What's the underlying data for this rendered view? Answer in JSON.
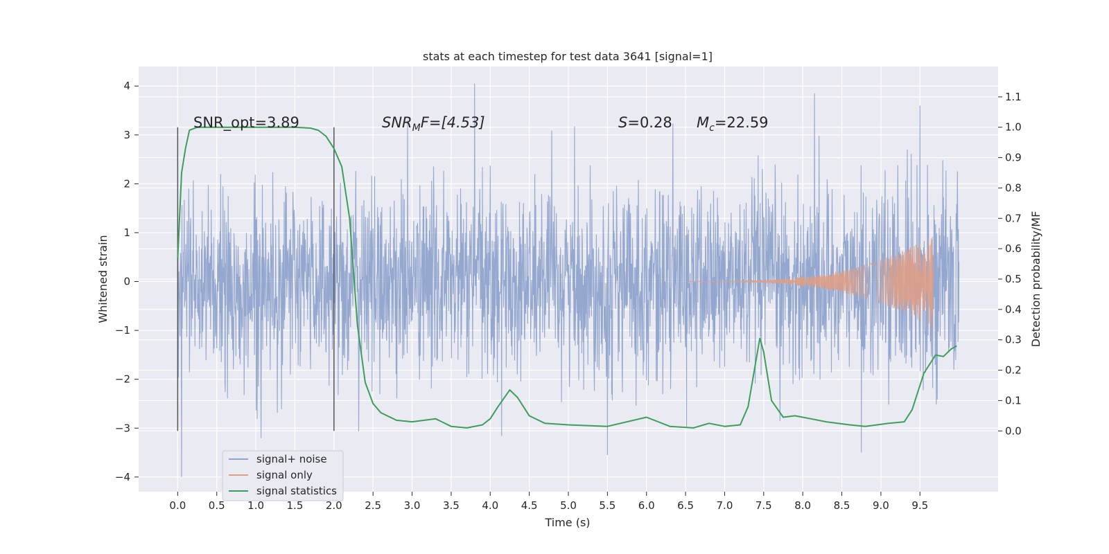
{
  "chart_data": {
    "type": "line",
    "title": "stats at each timestep for test data 3641 [signal=1]",
    "xlabel": "Time (s)",
    "ylabel_left": "Whitened strain",
    "ylabel_right": "Detection probability/MF",
    "xlim": [
      -0.5,
      10.5
    ],
    "ylim_left": [
      -4.3,
      4.4
    ],
    "ylim_right": [
      -0.2,
      1.2
    ],
    "x_ticks": [
      "0.0",
      "0.5",
      "1.0",
      "1.5",
      "2.0",
      "2.5",
      "3.0",
      "3.5",
      "4.0",
      "4.5",
      "5.0",
      "5.5",
      "6.0",
      "6.5",
      "7.0",
      "7.5",
      "8.0",
      "8.5",
      "9.0",
      "9.5"
    ],
    "y_ticks_left": [
      "4",
      "3",
      "2",
      "1",
      "0",
      "−1",
      "−2",
      "−3",
      "−4"
    ],
    "y_ticks_right": [
      "1.1",
      "1.0",
      "0.9",
      "0.8",
      "0.7",
      "0.6",
      "0.5",
      "0.4",
      "0.3",
      "0.2",
      "0.1",
      "0.0"
    ],
    "grid": true,
    "legend_position": "lower-left",
    "annotations": {
      "snr_opt": "SNR_opt=3.89",
      "snr_mf_main": "SNR",
      "snr_mf_sub": "M",
      "snr_mf_rest": "F=[4.53]",
      "s_var": "S",
      "s_val": "=0.28",
      "mc_var": "M",
      "mc_sub": "c",
      "mc_val": "=22.59"
    },
    "vertical_markers_x": [
      0.0,
      2.0
    ],
    "series": [
      {
        "name": "signal+ noise",
        "color": "#8fa3cc",
        "x_range": [
          0.0,
          10.0
        ],
        "envelope_upper_approx": 2.2,
        "envelope_lower_approx": -2.2,
        "notable_peaks": [
          [
            3.8,
            4.05
          ],
          [
            8.15,
            3.85
          ],
          [
            9.5,
            3.6
          ],
          [
            0.05,
            -4.0
          ],
          [
            8.75,
            -3.5
          ],
          [
            5.5,
            -3.55
          ]
        ]
      },
      {
        "name": "signal only",
        "color": "#dd9f87",
        "type": "chirp",
        "start_x": 6.5,
        "end_x": 9.67,
        "peak_amplitude": 0.95
      },
      {
        "name": "signal statistics",
        "color": "#3d9d5a",
        "axis": "right",
        "x": [
          0.0,
          0.05,
          0.1,
          0.15,
          0.25,
          0.5,
          1.0,
          1.5,
          1.7,
          1.8,
          1.9,
          2.0,
          2.1,
          2.2,
          2.3,
          2.4,
          2.5,
          2.6,
          2.8,
          3.0,
          3.3,
          3.5,
          3.7,
          3.9,
          4.0,
          4.1,
          4.25,
          4.35,
          4.5,
          4.7,
          5.0,
          5.5,
          6.0,
          6.3,
          6.6,
          6.8,
          7.0,
          7.2,
          7.3,
          7.45,
          7.5,
          7.6,
          7.75,
          7.9,
          8.1,
          8.3,
          8.6,
          8.8,
          9.1,
          9.3,
          9.4,
          9.55,
          9.7,
          9.8,
          9.9,
          9.97
        ],
        "y": [
          0.57,
          0.85,
          0.93,
          0.99,
          1.0,
          1.0,
          1.0,
          1.0,
          0.997,
          0.99,
          0.97,
          0.93,
          0.87,
          0.7,
          0.35,
          0.16,
          0.09,
          0.06,
          0.035,
          0.03,
          0.04,
          0.015,
          0.01,
          0.02,
          0.04,
          0.08,
          0.135,
          0.11,
          0.05,
          0.025,
          0.02,
          0.015,
          0.045,
          0.015,
          0.01,
          0.025,
          0.015,
          0.02,
          0.08,
          0.305,
          0.26,
          0.1,
          0.045,
          0.05,
          0.04,
          0.03,
          0.02,
          0.015,
          0.025,
          0.03,
          0.07,
          0.19,
          0.25,
          0.245,
          0.27,
          0.28
        ]
      }
    ]
  }
}
